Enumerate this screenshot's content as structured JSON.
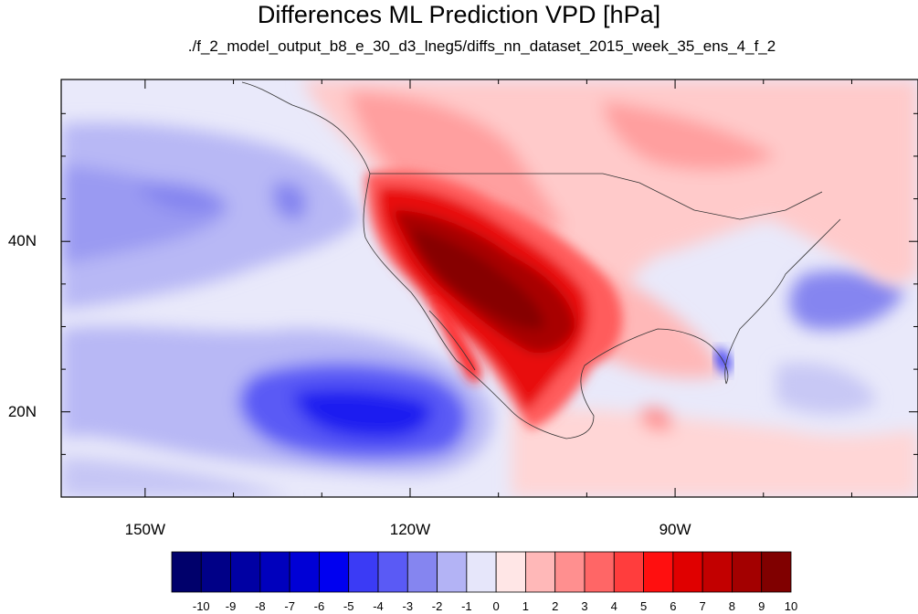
{
  "title": "Differences ML Prediction VPD [hPa]",
  "subtitle": "./f_2_model_output_b8_e_30_d3_lneg5/diffs_nn_dataset_2015_week_35_ens_4_f_2",
  "map": {
    "lon_range": [
      -159.5,
      -62.5
    ],
    "lat_range": [
      10,
      59
    ],
    "lon_labels": [
      "150W",
      "120W",
      "90W"
    ],
    "lat_labels": [
      "40N",
      "20N"
    ]
  },
  "colorbar": {
    "labels": [
      "-10",
      "-9",
      "-8",
      "-7",
      "-6",
      "-5",
      "-4",
      "-3",
      "-2",
      "-1",
      "0",
      "1",
      "2",
      "3",
      "4",
      "5",
      "6",
      "7",
      "8",
      "9",
      "10"
    ],
    "colors": [
      "#00006b",
      "#000087",
      "#0000a3",
      "#0000bd",
      "#0000d6",
      "#0000f0",
      "#3b3bf5",
      "#5a5af5",
      "#8585f0",
      "#b3b3f5",
      "#e6e6fa",
      "#ffe6e6",
      "#ffb8b8",
      "#ff8f8f",
      "#ff6666",
      "#ff3d3d",
      "#ff0f0f",
      "#e00000",
      "#c20000",
      "#a30000",
      "#800000"
    ]
  }
}
